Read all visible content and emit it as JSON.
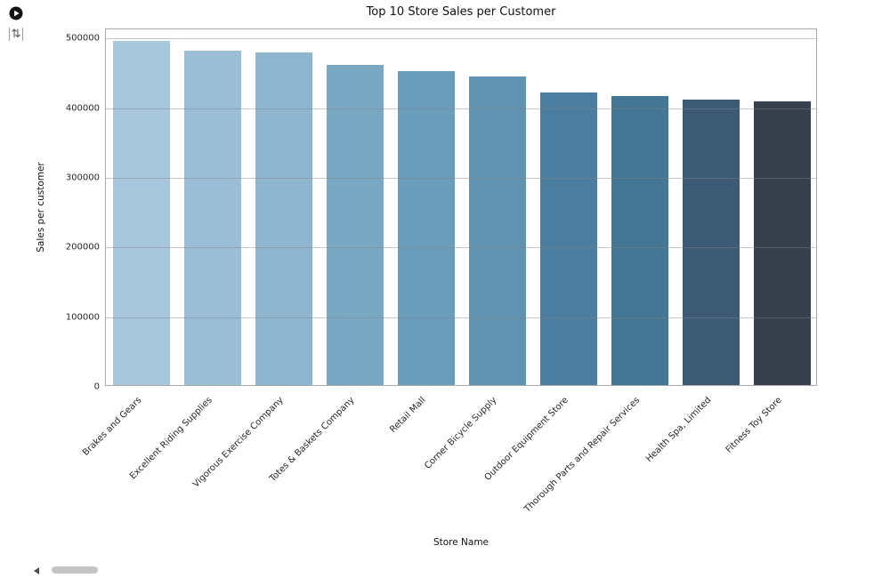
{
  "icons": {
    "play": {
      "name": "play-icon"
    },
    "scroll_output": {
      "name": "scroll-output-icon",
      "glyph": "⇅"
    },
    "scroll_left_arrow": {
      "name": "scroll-left-arrow"
    }
  },
  "chart_data": {
    "type": "bar",
    "title": "Top 10 Store Sales per Customer",
    "xlabel": "Store Name",
    "ylabel": "Sales per customer",
    "categories": [
      "Brakes and Gears",
      "Excellent Riding Supplies",
      "Vigorous Exercise Company",
      "Totes & Baskets Company",
      "Retail Mall",
      "Corner Bicycle Supply",
      "Outdoor Equipment Store",
      "Thorough Parts and Repair Services",
      "Health Spa, Limited",
      "Fitness Toy Store"
    ],
    "values": [
      494000,
      480000,
      477000,
      459000,
      450000,
      443000,
      420000,
      415000,
      410000,
      407000
    ],
    "ylim": [
      0,
      513000
    ],
    "yticks": [
      0,
      100000,
      200000,
      300000,
      400000,
      500000
    ],
    "grid": true,
    "grid_axis": "y",
    "legend": false,
    "bar_colors": [
      "#a9c7dc",
      "#9bbed6",
      "#8fb6cf",
      "#7aa7c2",
      "#6b9cba",
      "#6093b1",
      "#4b7d9e",
      "#467695",
      "#3d5a74",
      "#36414d"
    ]
  },
  "scrollbar": {
    "orientation": "horizontal",
    "thumb_position": "left"
  }
}
